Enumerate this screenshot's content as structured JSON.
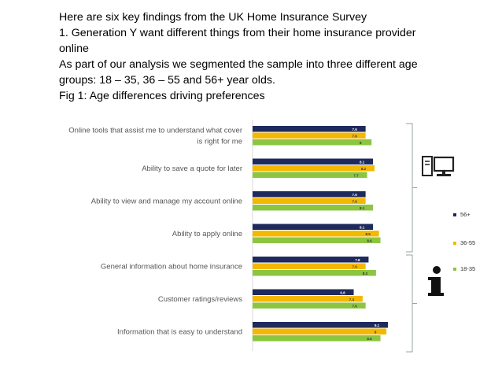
{
  "slide": {
    "line1": "Here are six key findings from the UK Home Insurance Survey",
    "line2": "1. Generation Y want different things from their home insurance provider",
    "line3": "online",
    "line4": "As part of our analysis we segmented the sample into three different age",
    "line5": "groups: 18 – 35, 36 – 55 and 56+ year olds.",
    "line6": "Fig 1: Age differences driving preferences"
  },
  "chart_data": {
    "type": "bar",
    "orientation": "horizontal",
    "title": "Fig 1: Age differences driving preferences",
    "categories": [
      [
        "Online tools that assist me to understand what cover",
        "is right for me"
      ],
      [
        "Ability to save a quote for later"
      ],
      [
        "Ability to view and manage my account online"
      ],
      [
        "Ability to apply online"
      ],
      [
        "General information about home insurance"
      ],
      [
        "Customer ratings/reviews"
      ],
      [
        "Information that is easy to understand"
      ]
    ],
    "series": [
      {
        "name": "56+",
        "color": "#1f2a5c",
        "values": [
          7.6,
          8.1,
          7.6,
          8.1,
          7.8,
          6.8,
          9.1
        ]
      },
      {
        "name": "36-55",
        "color": "#f5b800",
        "values": [
          7.6,
          8.2,
          7.6,
          8.5,
          7.6,
          7.4,
          9.0
        ]
      },
      {
        "name": "18-35",
        "color": "#8cc641",
        "values": [
          8.0,
          7.7,
          8.1,
          8.6,
          8.3,
          7.6,
          8.6
        ]
      }
    ],
    "data_labels": [
      [
        "7.6",
        "8.1",
        "7.6",
        "8.1",
        "7.8",
        "6.8",
        "9.1"
      ],
      [
        "7.6",
        "8.2",
        "7.6",
        "8.5",
        "7.6",
        "7.4",
        "9"
      ],
      [
        "8",
        "7.7",
        "8.1",
        "8.6",
        "8.3",
        "7.6",
        "8.6"
      ]
    ],
    "legend_position": "right",
    "groups": [
      {
        "icon": "computer-icon",
        "rows": [
          0,
          1,
          2,
          3
        ]
      },
      {
        "icon": "info-icon",
        "rows": [
          4,
          5,
          6
        ]
      }
    ]
  }
}
